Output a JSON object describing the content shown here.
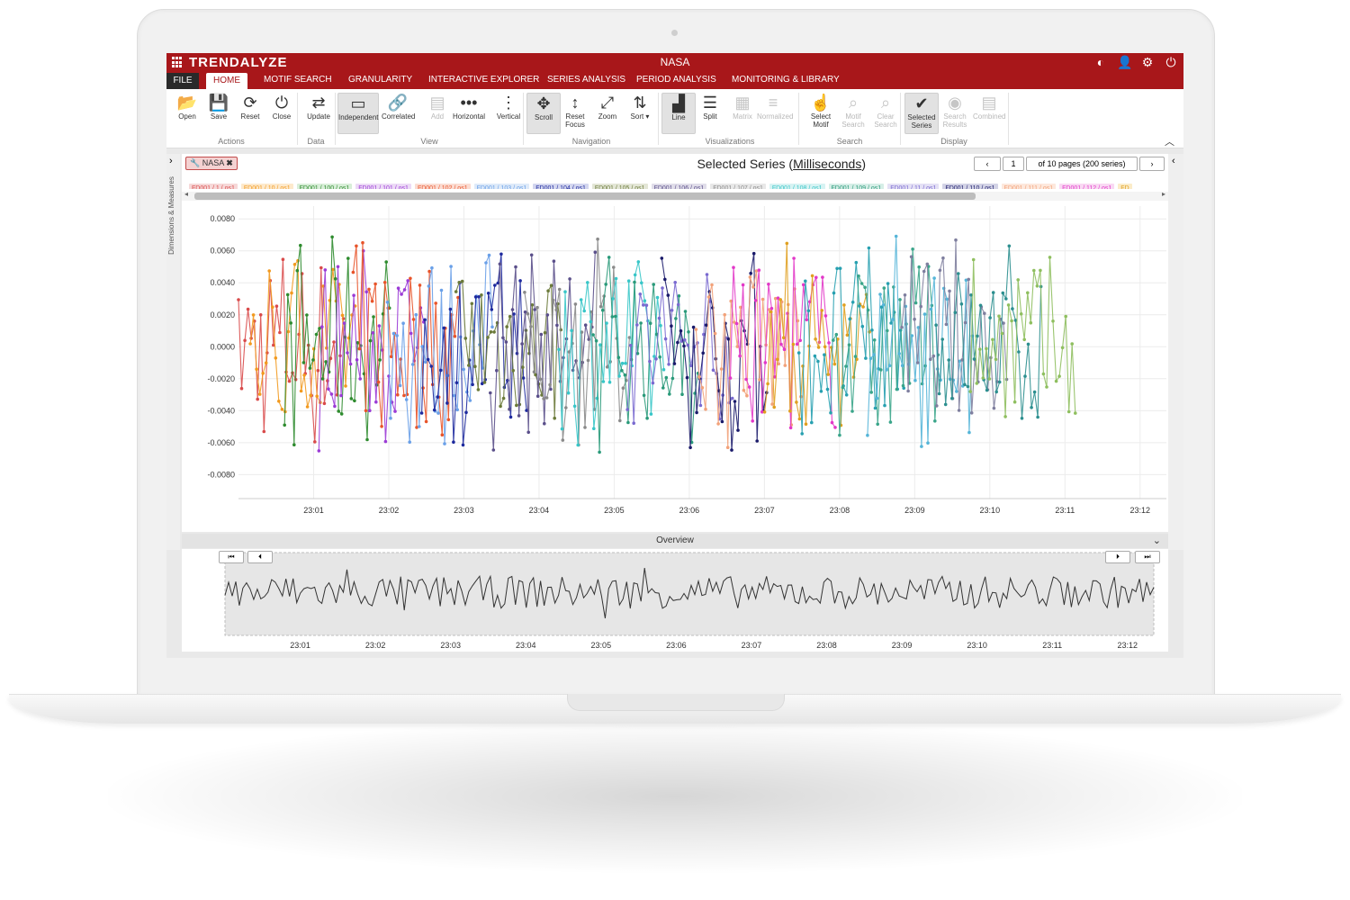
{
  "app": {
    "logo": "TRENDALYZE",
    "title": "NASA",
    "title_icons": [
      "contrast-icon",
      "user-icon",
      "settings-icon",
      "power-icon"
    ]
  },
  "menu": {
    "file": "FILE",
    "tabs": [
      "HOME",
      "MOTIF SEARCH",
      "GRANULARITY",
      "INTERACTIVE EXPLORER",
      "SERIES ANALYSIS",
      "PERIOD ANALYSIS",
      "MONITORING & LIBRARY"
    ],
    "active_tab": "HOME"
  },
  "ribbon": {
    "buttons": [
      {
        "label": "Open",
        "icon": "folder-icon",
        "glyph": "📂",
        "state": "normal"
      },
      {
        "label": "Save",
        "icon": "save-icon",
        "glyph": "💾",
        "state": "normal"
      },
      {
        "label": "Reset",
        "icon": "refresh-icon",
        "glyph": "⟳",
        "state": "normal"
      },
      {
        "label": "Close",
        "icon": "power-icon",
        "glyph": "⏻",
        "state": "normal"
      },
      {
        "label": "Update",
        "icon": "update-icon",
        "glyph": "⇄",
        "state": "normal"
      },
      {
        "label": "Independent",
        "icon": "window-icon",
        "glyph": "▭",
        "state": "active"
      },
      {
        "label": "Correlated",
        "icon": "link-icon",
        "glyph": "🔗",
        "state": "normal"
      },
      {
        "label": "Add",
        "icon": "printer-icon",
        "glyph": "▤",
        "state": "disabled"
      },
      {
        "label": "Horizontal",
        "icon": "dots-horizontal-icon",
        "glyph": "•••",
        "state": "normal"
      },
      {
        "label": "Vertical",
        "icon": "dots-vertical-icon",
        "glyph": "⋮",
        "state": "normal"
      },
      {
        "label": "Scroll",
        "icon": "move-icon",
        "glyph": "✥",
        "state": "active"
      },
      {
        "label": "Reset Focus",
        "icon": "reset-focus-icon",
        "glyph": "↕",
        "state": "normal"
      },
      {
        "label": "Zoom",
        "icon": "expand-icon",
        "glyph": "⤢",
        "state": "normal"
      },
      {
        "label": "Sort ▾",
        "icon": "sort-icon",
        "glyph": "⇅",
        "state": "normal"
      },
      {
        "label": "Line",
        "icon": "bar-chart-icon",
        "glyph": "▟",
        "state": "active"
      },
      {
        "label": "Split",
        "icon": "list-icon",
        "glyph": "☰",
        "state": "normal"
      },
      {
        "label": "Matrix",
        "icon": "grid-icon",
        "glyph": "▦",
        "state": "disabled"
      },
      {
        "label": "Normalized",
        "icon": "align-icon",
        "glyph": "≡",
        "state": "disabled"
      },
      {
        "label": "Select Motif",
        "icon": "pointer-icon",
        "glyph": "☝",
        "state": "normal"
      },
      {
        "label": "Motif Search",
        "icon": "search-icon",
        "glyph": "⌕",
        "state": "disabled"
      },
      {
        "label": "Clear Search",
        "icon": "clear-search-icon",
        "glyph": "⌕",
        "state": "disabled"
      },
      {
        "label": "Selected Series",
        "icon": "check-icon",
        "glyph": "✔",
        "state": "active"
      },
      {
        "label": "Search Results",
        "icon": "eye-icon",
        "glyph": "◉",
        "state": "disabled"
      },
      {
        "label": "Combined",
        "icon": "document-icon",
        "glyph": "▤",
        "state": "disabled"
      }
    ],
    "groups": [
      "Actions",
      "Data",
      "View",
      "Navigation",
      "Visualizations",
      "Search",
      "Display"
    ]
  },
  "sidebar": {
    "label": "Dimensions & Measures"
  },
  "panel": {
    "tag": "NASA",
    "title_prefix": "Selected Series (",
    "title_unit": "Milliseconds",
    "title_suffix": ")",
    "page": "1",
    "page_info": "of 10 pages (200 series)"
  },
  "series_chips": [
    {
      "label": "FD001 / 1 / os1",
      "color": "#d94a4a",
      "bg": "#f6d8d8"
    },
    {
      "label": "FD001 / 10 / os1",
      "color": "#f29a1f",
      "bg": "#fde9cc"
    },
    {
      "label": "FD001 / 100 / os1",
      "color": "#2e8b2e",
      "bg": "#d8eed8"
    },
    {
      "label": "FD001 / 101 / os1",
      "color": "#9b3bd6",
      "bg": "#ecdaf6"
    },
    {
      "label": "FD001 / 102 / os1",
      "color": "#e8542a",
      "bg": "#fbdcd2"
    },
    {
      "label": "FD001 / 103 / os1",
      "color": "#6aa0e8",
      "bg": "#deeaf9"
    },
    {
      "label": "FD001 / 104 / os1",
      "color": "#1e2a9e",
      "bg": "#d3d6ef"
    },
    {
      "label": "FD001 / 105 / os1",
      "color": "#6b7a3a",
      "bg": "#e3e6d6"
    },
    {
      "label": "FD001 / 106 / os1",
      "color": "#5a4f8a",
      "bg": "#e0dde9"
    },
    {
      "label": "FD001 / 107 / os1",
      "color": "#8a8a8a",
      "bg": "#e8e8e8"
    },
    {
      "label": "FD001 / 108 / os1",
      "color": "#38c6c8",
      "bg": "#d7f3f3"
    },
    {
      "label": "FD001 / 109 / os1",
      "color": "#2a9a7a",
      "bg": "#d6eee7"
    },
    {
      "label": "FD001 / 11 / os1",
      "color": "#7a6ad0",
      "bg": "#e4e0f5"
    },
    {
      "label": "FD001 / 110 / os1",
      "color": "#1a1a6a",
      "bg": "#d3d3e6"
    },
    {
      "label": "FD001 / 111 / os1",
      "color": "#f2a27a",
      "bg": "#fde8dc"
    },
    {
      "label": "FD001 / 112 / os1",
      "color": "#e238c8",
      "bg": "#f9d9f3"
    },
    {
      "label": "FD",
      "color": "#e0a020",
      "bg": "#fbecc9"
    }
  ],
  "overview": {
    "title": "Overview",
    "buttons": [
      "⏮",
      "⏴",
      "⏵",
      "⏭"
    ]
  },
  "chart_data": [
    {
      "type": "line",
      "title": "Selected Series (Milliseconds)",
      "ylim": [
        -0.0095,
        0.0088
      ],
      "y_ticks": [
        "0.0080",
        "0.0060",
        "0.0040",
        "0.0020",
        "0.0000",
        "-0.0020",
        "-0.0040",
        "-0.0060",
        "-0.0080"
      ],
      "y_tick_values": [
        0.008,
        0.006,
        0.004,
        0.002,
        0.0,
        -0.002,
        -0.004,
        -0.006,
        -0.008
      ],
      "x_ticks": [
        "23:01",
        "23:02",
        "23:03",
        "23:04",
        "23:05",
        "23:06",
        "23:07",
        "23:08",
        "23:09",
        "23:10",
        "23:11",
        "23:12"
      ],
      "x_range_minutes": [
        0.0,
        12.35
      ],
      "x_tick_minutes": [
        1,
        2,
        3,
        4,
        5,
        6,
        7,
        8,
        9,
        10,
        11,
        12
      ],
      "grid": true,
      "markers": true,
      "note": "Overlaid noisy series oscillating around 0.0000 within roughly -0.0075 to 0.0075, colored per series chip; values approximate."
    },
    {
      "type": "line",
      "title": "Overview",
      "x_ticks": [
        "23:01",
        "23:02",
        "23:03",
        "23:04",
        "23:05",
        "23:06",
        "23:07",
        "23:08",
        "23:09",
        "23:10",
        "23:11",
        "23:12"
      ],
      "x_range_minutes": [
        0.0,
        12.35
      ],
      "x_tick_minutes": [
        1,
        2,
        3,
        4,
        5,
        6,
        7,
        8,
        9,
        10,
        11,
        12
      ],
      "grid": false
    }
  ]
}
